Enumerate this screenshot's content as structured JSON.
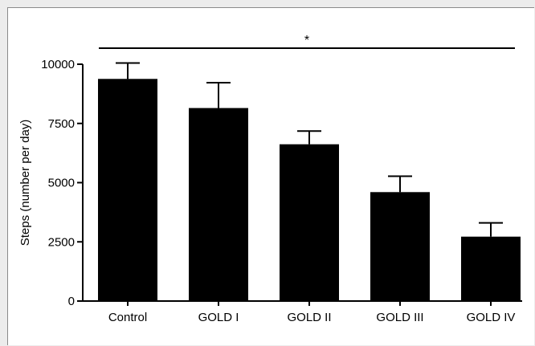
{
  "chart_data": {
    "type": "bar",
    "title": "",
    "xlabel": "",
    "ylabel": "Steps (number per day)",
    "categories": [
      "Control",
      "GOLD I",
      "GOLD II",
      "GOLD III",
      "GOLD IV"
    ],
    "values": [
      9380,
      8150,
      6620,
      4600,
      2720
    ],
    "error_upper": [
      10050,
      9220,
      7180,
      5270,
      3300
    ],
    "ylim": [
      0,
      10000
    ],
    "yticks": [
      0,
      2500,
      5000,
      7500,
      10000
    ],
    "ytick_labels": [
      "0",
      "2500",
      "5000",
      "7500",
      "10000"
    ],
    "grid": false,
    "bar_color": "#000000",
    "significance": {
      "label": "*",
      "from": "Control",
      "to": "GOLD IV"
    }
  }
}
